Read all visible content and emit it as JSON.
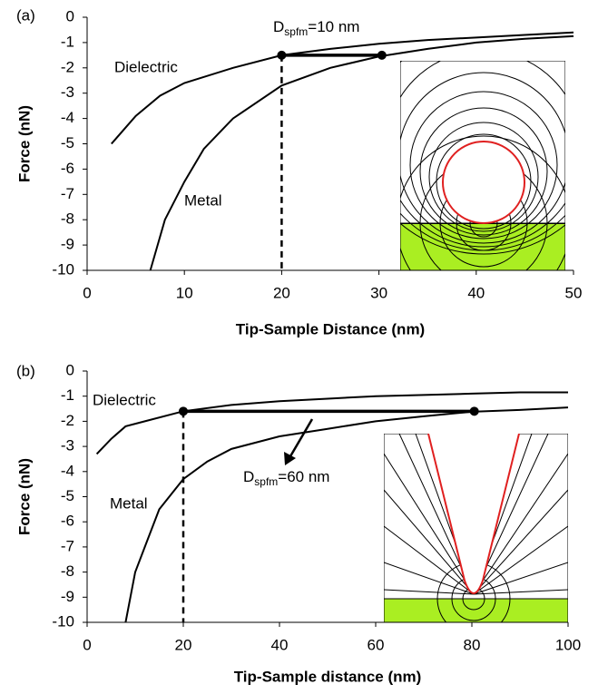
{
  "chart_data": [
    {
      "type": "line",
      "panel_label": "(a)",
      "xlabel": "Tip-Sample Distance (nm)",
      "ylabel": "Force (nN)",
      "xlim": [
        0,
        50
      ],
      "ylim": [
        -10,
        0
      ],
      "xticks": [
        0,
        10,
        20,
        30,
        40,
        50
      ],
      "yticks": [
        0,
        -1,
        -2,
        -3,
        -4,
        -5,
        -6,
        -7,
        -8,
        -9,
        -10
      ],
      "series": [
        {
          "name": "Dielectric",
          "color": "#000000",
          "x": [
            2.5,
            5,
            7.5,
            10,
            15,
            20,
            25,
            30,
            35,
            40,
            45,
            50
          ],
          "values": [
            -5,
            -3.9,
            -3.1,
            -2.6,
            -2.0,
            -1.5,
            -1.25,
            -1.05,
            -0.9,
            -0.8,
            -0.7,
            -0.6
          ]
        },
        {
          "name": "Metal",
          "color": "#000000",
          "x": [
            6.5,
            8,
            10,
            12,
            15,
            20,
            25,
            30,
            35,
            40,
            45,
            50
          ],
          "values": [
            -10,
            -8,
            -6.5,
            -5.2,
            -4.0,
            -2.7,
            -2.0,
            -1.55,
            -1.25,
            -1.0,
            -0.85,
            -0.75
          ]
        }
      ],
      "markers": {
        "x": [
          20,
          30.3
        ],
        "y": [
          -1.5,
          -1.5
        ]
      },
      "annotation": {
        "main": "D",
        "sub": "spfm",
        "rest": "=10 nm"
      }
    },
    {
      "type": "line",
      "panel_label": "(b)",
      "xlabel": "Tip-Sample distance (nm)",
      "ylabel": "Force (nN)",
      "xlim": [
        0,
        100
      ],
      "ylim": [
        -10,
        0
      ],
      "xticks": [
        0,
        20,
        40,
        60,
        80,
        100
      ],
      "yticks": [
        0,
        -1,
        -2,
        -3,
        -4,
        -5,
        -6,
        -7,
        -8,
        -9,
        -10
      ],
      "series": [
        {
          "name": "Dielectric",
          "color": "#000000",
          "x": [
            2,
            5,
            8,
            12,
            20,
            30,
            40,
            50,
            60,
            70,
            80,
            90,
            100
          ],
          "values": [
            -3.3,
            -2.7,
            -2.2,
            -2.0,
            -1.6,
            -1.35,
            -1.2,
            -1.1,
            -1.0,
            -0.95,
            -0.9,
            -0.85,
            -0.85
          ]
        },
        {
          "name": "Metal",
          "color": "#000000",
          "x": [
            8,
            9,
            10,
            12,
            15,
            20,
            25,
            30,
            40,
            50,
            60,
            70,
            80,
            90,
            100
          ],
          "values": [
            -10,
            -9,
            -8,
            -7,
            -5.5,
            -4.3,
            -3.6,
            -3.1,
            -2.6,
            -2.3,
            -2.0,
            -1.8,
            -1.62,
            -1.55,
            -1.45
          ]
        }
      ],
      "markers": {
        "x": [
          20,
          80.5
        ],
        "y": [
          -1.6,
          -1.6
        ]
      },
      "annotation": {
        "main": "D",
        "sub": "spfm",
        "rest": "=60 nm"
      }
    }
  ]
}
